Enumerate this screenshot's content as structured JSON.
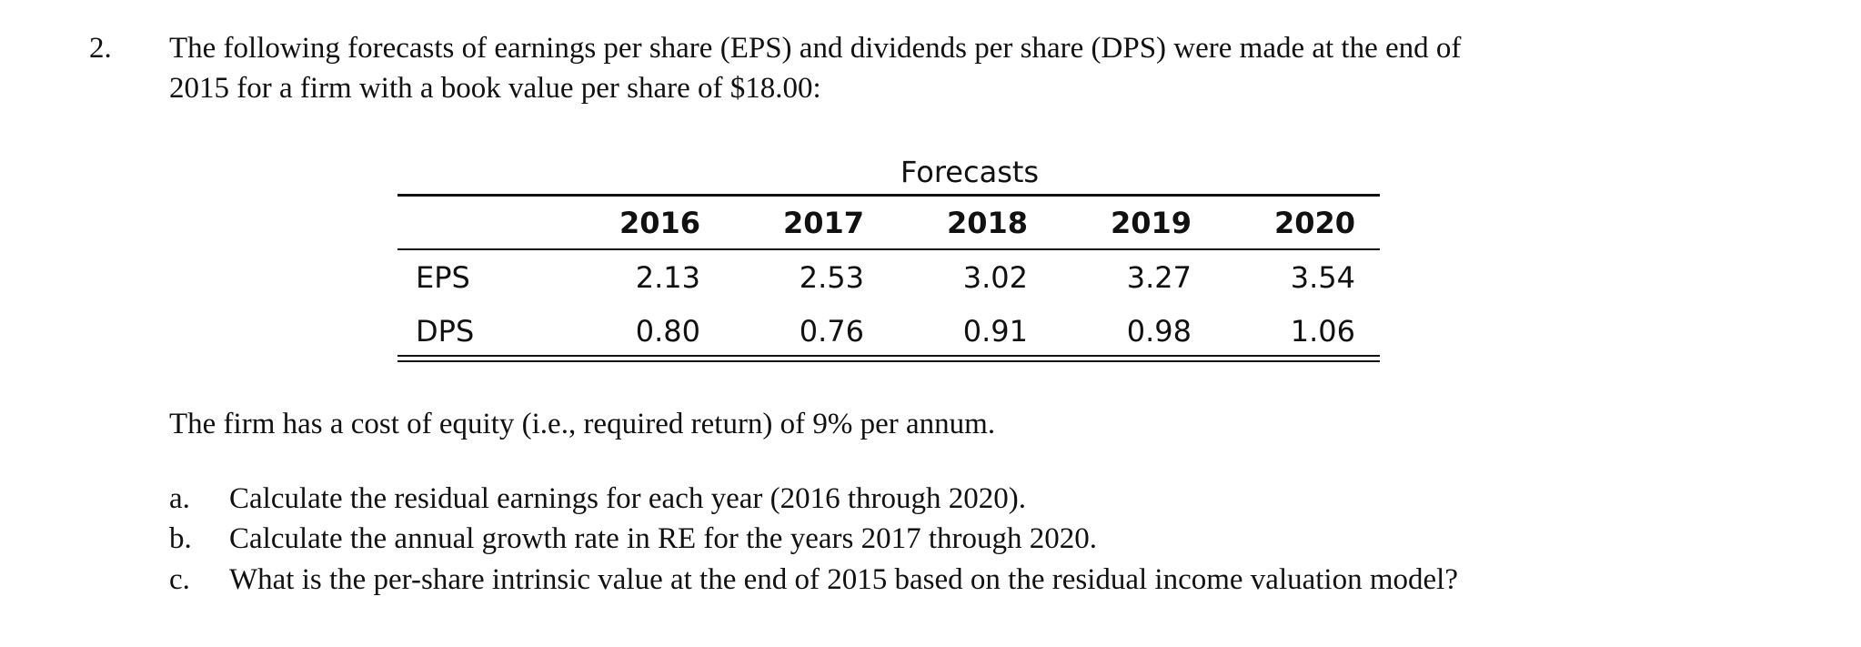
{
  "question": {
    "number": "2.",
    "line1": "The following forecasts of earnings per share (EPS) and dividends per share (DPS) were made at the end of",
    "line2": "2015 for a firm with a book value per share of $18.00:"
  },
  "table": {
    "group_header": "Forecasts",
    "years": [
      "2016",
      "2017",
      "2018",
      "2019",
      "2020"
    ],
    "rows": [
      {
        "label": "EPS",
        "values": [
          "2.13",
          "2.53",
          "3.02",
          "3.27",
          "3.54"
        ]
      },
      {
        "label": "DPS",
        "values": [
          "0.80",
          "0.76",
          "0.91",
          "0.98",
          "1.06"
        ]
      }
    ]
  },
  "cost_of_equity_text": "The firm has a cost of equity (i.e., required return) of 9% per annum.",
  "parts": [
    {
      "letter": "a.",
      "text": "Calculate the residual earnings for each year (2016 through 2020)."
    },
    {
      "letter": "b.",
      "text": "Calculate the annual growth rate in RE for the years 2017 through 2020."
    },
    {
      "letter": "c.",
      "text": "What is the per-share intrinsic value at the end of 2015 based on the residual income valuation model?"
    }
  ]
}
